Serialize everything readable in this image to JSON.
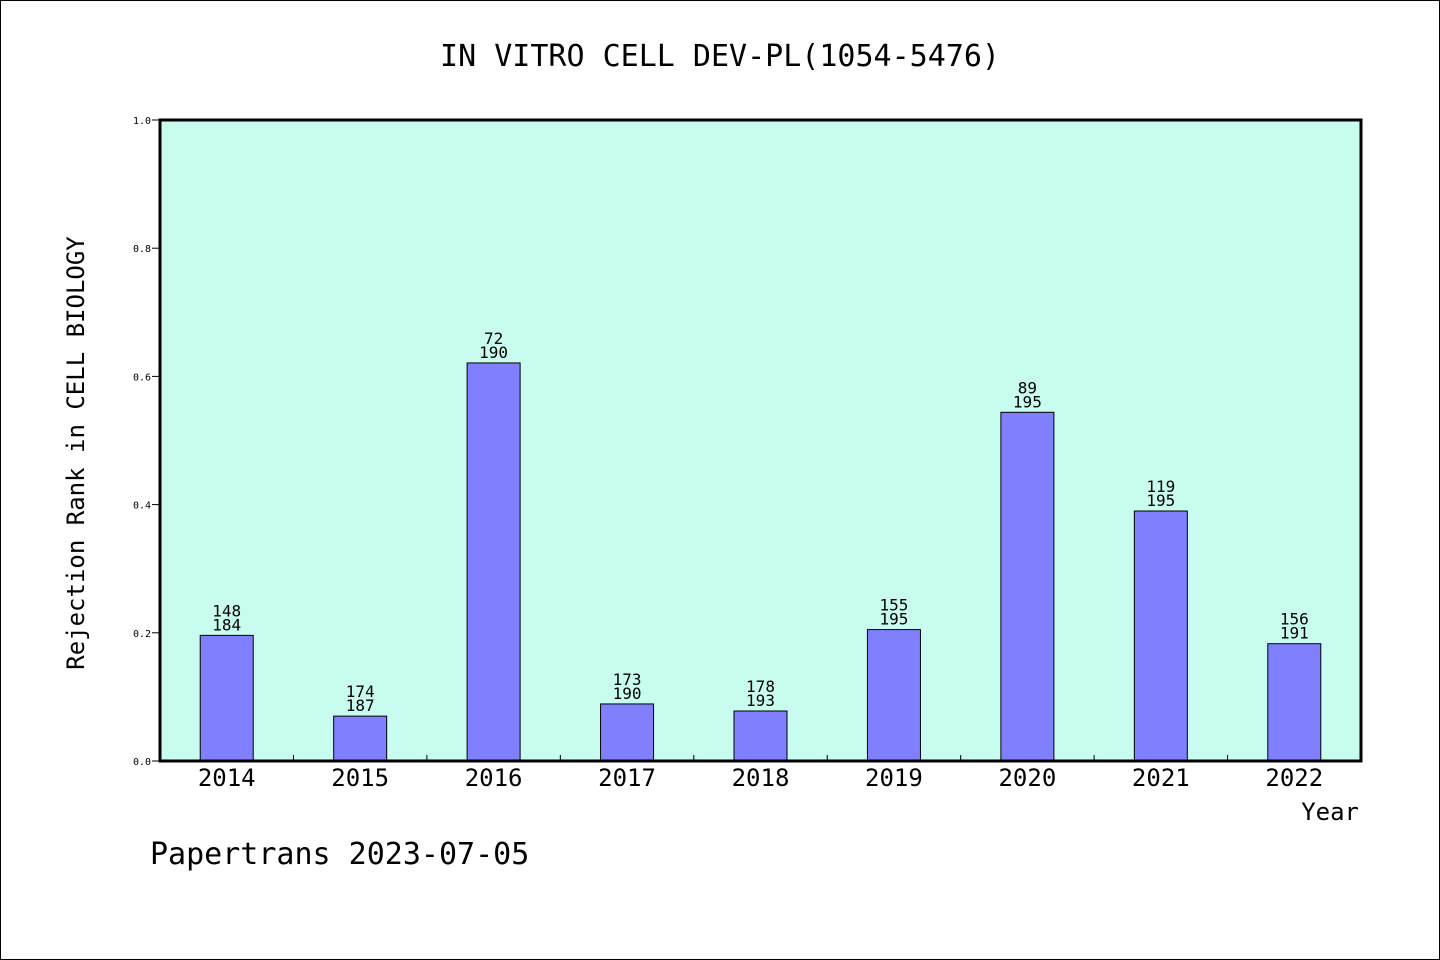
{
  "chart_data": {
    "type": "bar",
    "title": "IN VITRO CELL DEV-PL(1054-5476)",
    "xlabel": "Year",
    "ylabel": "Rejection Rank in CELL BIOLOGY",
    "ylim": [
      0,
      1.0
    ],
    "yticks": [
      "0.0",
      "0.2",
      "0.4",
      "0.6",
      "0.8",
      "1.0"
    ],
    "grid": false,
    "categories": [
      "2014",
      "2015",
      "2016",
      "2017",
      "2018",
      "2019",
      "2020",
      "2021",
      "2022"
    ],
    "values": [
      0.196,
      0.07,
      0.621,
      0.089,
      0.078,
      0.205,
      0.544,
      0.39,
      0.183
    ],
    "rank": [
      "148",
      "174",
      "72",
      "173",
      "178",
      "155",
      "89",
      "119",
      "156"
    ],
    "total": [
      "184",
      "187",
      "190",
      "190",
      "193",
      "195",
      "195",
      "195",
      "191"
    ],
    "colors": {
      "plot_bg": "#c8fcee",
      "bar": "#8080ff",
      "bar_edge": "#000000"
    }
  },
  "footer": "Papertrans 2023-07-05"
}
